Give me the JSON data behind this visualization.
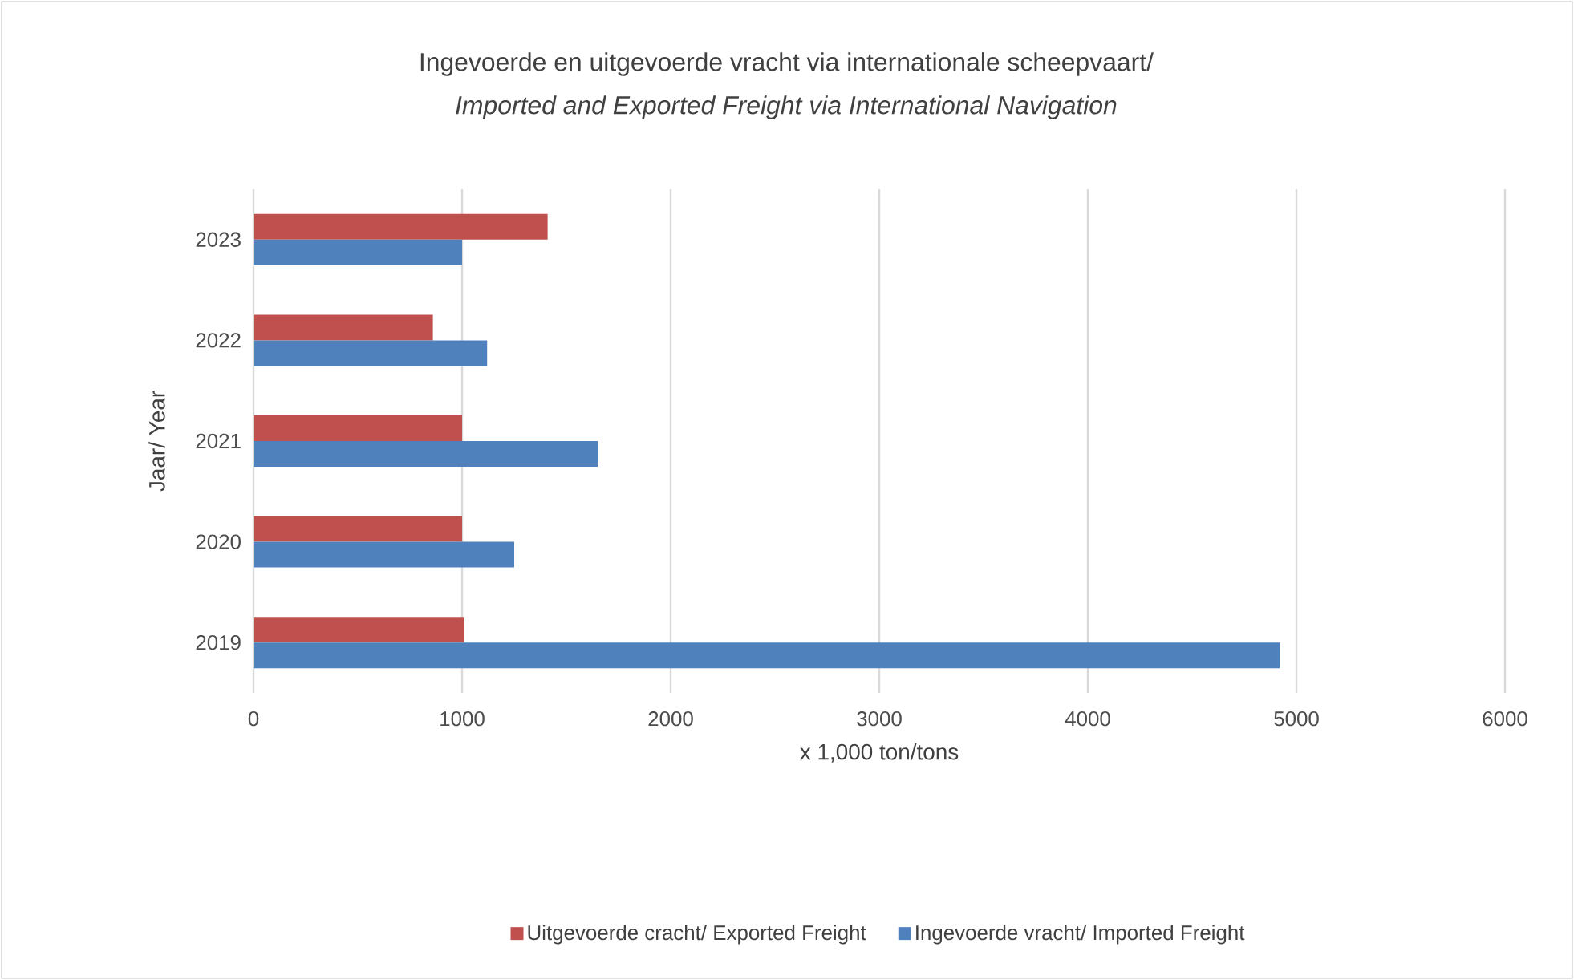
{
  "chart_data": {
    "type": "bar",
    "orientation": "horizontal",
    "title": "Ingevoerde en uitgevoerde vracht via internationale scheepvaart/",
    "subtitle": "Imported and Exported Freight via International Navigation",
    "xlabel": "x 1,000  ton/tons",
    "ylabel": "Jaar/ Year",
    "categories": [
      "2023",
      "2022",
      "2021",
      "2020",
      "2019"
    ],
    "series": [
      {
        "name": "Uitgevoerde cracht/ Exported Freight",
        "color": "#c0504d",
        "values": [
          1410,
          860,
          1000,
          1000,
          1010
        ]
      },
      {
        "name": "Ingevoerde vracht/ Imported Freight",
        "color": "#4f81bd",
        "values": [
          1000,
          1120,
          1650,
          1250,
          4920
        ]
      }
    ],
    "xlim": [
      0,
      6000
    ],
    "xticks": [
      0,
      1000,
      2000,
      3000,
      4000,
      5000,
      6000
    ],
    "grid": "x",
    "legend": "bottom"
  }
}
